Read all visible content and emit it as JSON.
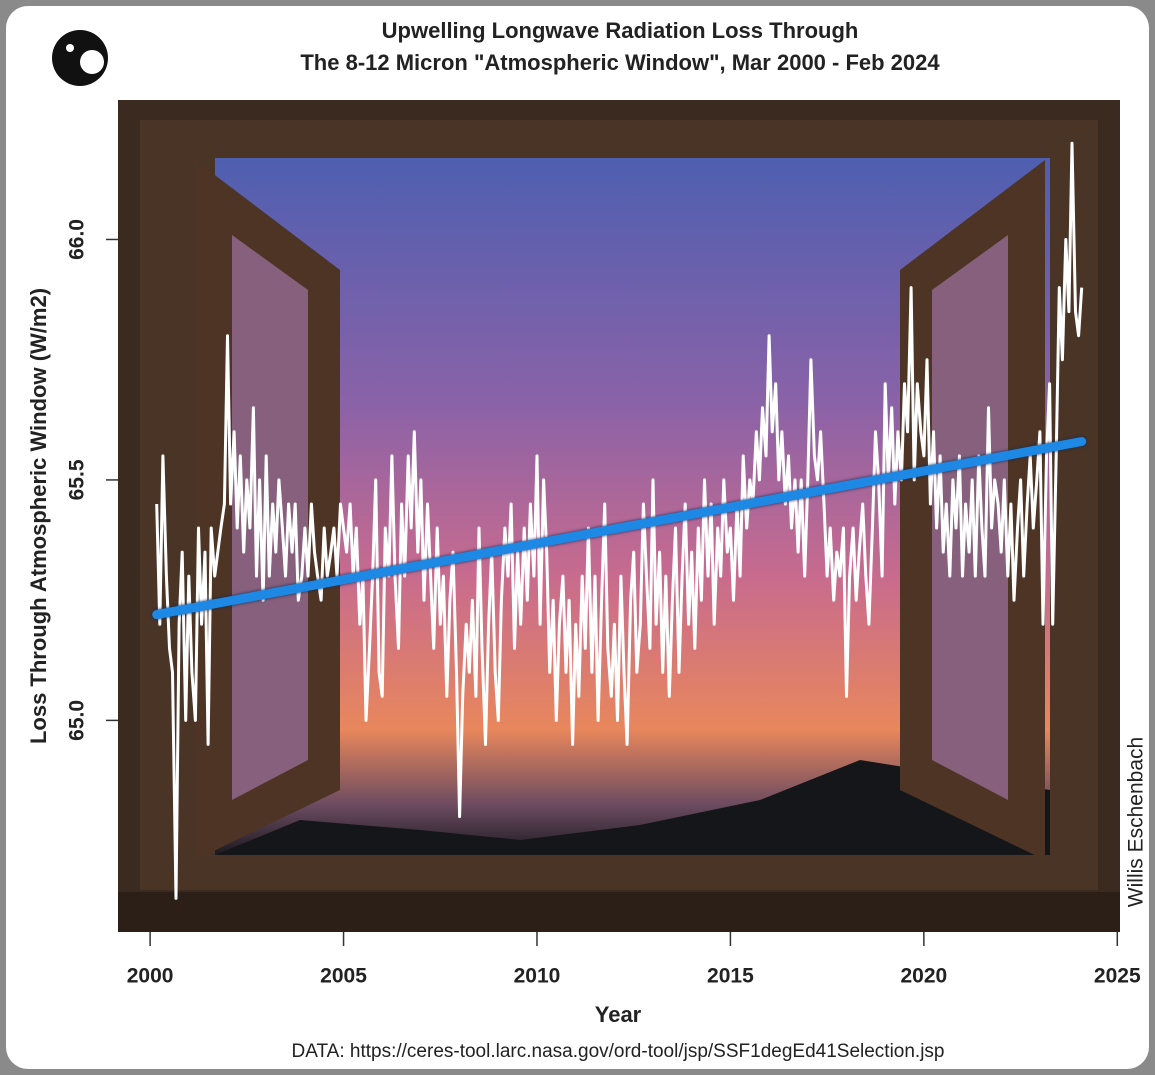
{
  "chart_data": {
    "type": "line",
    "title": "Upwelling Longwave Radiation Loss Through",
    "subtitle": "The 8-12 Micron \"Atmospheric Window\", Mar 2000 - Feb 2024",
    "x_label": "Year",
    "y_label": "Loss Through Atmospheric Window (W/m2)",
    "source": "DATA: https://ceres-tool.larc.nasa.gov/ord-tool/jsp/SSF1degEd41Selection.jsp",
    "credit": "Willis Eschenbach",
    "color": "#ffffff",
    "x": [
      2000.17,
      2000.25,
      2000.33,
      2000.42,
      2000.5,
      2000.58,
      2000.67,
      2000.75,
      2000.83,
      2000.92,
      2001,
      2001.08,
      2001.17,
      2001.25,
      2001.33,
      2001.42,
      2001.5,
      2001.58,
      2001.67,
      2001.75,
      2001.83,
      2001.92,
      2002,
      2002.08,
      2002.17,
      2002.25,
      2002.33,
      2002.42,
      2002.5,
      2002.58,
      2002.67,
      2002.75,
      2002.83,
      2002.92,
      2003,
      2003.08,
      2003.17,
      2003.25,
      2003.33,
      2003.42,
      2003.5,
      2003.58,
      2003.67,
      2003.75,
      2003.83,
      2003.92,
      2004,
      2004.08,
      2004.17,
      2004.25,
      2004.33,
      2004.42,
      2004.5,
      2004.58,
      2004.67,
      2004.75,
      2004.83,
      2004.92,
      2005,
      2005.08,
      2005.17,
      2005.25,
      2005.33,
      2005.42,
      2005.5,
      2005.58,
      2005.67,
      2005.75,
      2005.83,
      2005.92,
      2006,
      2006.08,
      2006.17,
      2006.25,
      2006.33,
      2006.42,
      2006.5,
      2006.58,
      2006.67,
      2006.75,
      2006.83,
      2006.92,
      2007,
      2007.08,
      2007.17,
      2007.25,
      2007.33,
      2007.42,
      2007.5,
      2007.58,
      2007.67,
      2007.75,
      2007.83,
      2007.92,
      2008,
      2008.08,
      2008.17,
      2008.25,
      2008.33,
      2008.42,
      2008.5,
      2008.58,
      2008.67,
      2008.75,
      2008.83,
      2008.92,
      2009,
      2009.08,
      2009.17,
      2009.25,
      2009.33,
      2009.42,
      2009.5,
      2009.58,
      2009.67,
      2009.75,
      2009.83,
      2009.92,
      2010,
      2010.08,
      2010.17,
      2010.25,
      2010.33,
      2010.42,
      2010.5,
      2010.58,
      2010.67,
      2010.75,
      2010.83,
      2010.92,
      2011,
      2011.08,
      2011.17,
      2011.25,
      2011.33,
      2011.42,
      2011.5,
      2011.58,
      2011.67,
      2011.75,
      2011.83,
      2011.92,
      2012,
      2012.08,
      2012.17,
      2012.25,
      2012.33,
      2012.42,
      2012.5,
      2012.58,
      2012.67,
      2012.75,
      2012.83,
      2012.92,
      2013,
      2013.08,
      2013.17,
      2013.25,
      2013.33,
      2013.42,
      2013.5,
      2013.58,
      2013.67,
      2013.75,
      2013.83,
      2013.92,
      2014,
      2014.08,
      2014.17,
      2014.25,
      2014.33,
      2014.42,
      2014.5,
      2014.58,
      2014.67,
      2014.75,
      2014.83,
      2014.92,
      2015,
      2015.08,
      2015.17,
      2015.25,
      2015.33,
      2015.42,
      2015.5,
      2015.58,
      2015.67,
      2015.75,
      2015.83,
      2015.92,
      2016,
      2016.08,
      2016.17,
      2016.25,
      2016.33,
      2016.42,
      2016.5,
      2016.58,
      2016.67,
      2016.75,
      2016.83,
      2016.92,
      2017,
      2017.08,
      2017.17,
      2017.25,
      2017.33,
      2017.42,
      2017.5,
      2017.58,
      2017.67,
      2017.75,
      2017.83,
      2017.92,
      2018,
      2018.08,
      2018.17,
      2018.25,
      2018.33,
      2018.42,
      2018.5,
      2018.58,
      2018.67,
      2018.75,
      2018.83,
      2018.92,
      2019,
      2019.08,
      2019.17,
      2019.25,
      2019.33,
      2019.42,
      2019.5,
      2019.58,
      2019.67,
      2019.75,
      2019.83,
      2019.92,
      2020,
      2020.08,
      2020.17,
      2020.25,
      2020.33,
      2020.42,
      2020.5,
      2020.58,
      2020.67,
      2020.75,
      2020.83,
      2020.92,
      2021,
      2021.08,
      2021.17,
      2021.25,
      2021.33,
      2021.42,
      2021.5,
      2021.58,
      2021.67,
      2021.75,
      2021.83,
      2021.92,
      2022,
      2022.08,
      2022.17,
      2022.25,
      2022.33,
      2022.42,
      2022.5,
      2022.58,
      2022.67,
      2022.75,
      2022.83,
      2022.92,
      2023,
      2023.08,
      2023.17,
      2023.25,
      2023.33,
      2023.42,
      2023.5,
      2023.58,
      2023.67,
      2023.75,
      2023.83,
      2023.92,
      2024,
      2024.08
    ],
    "values": [
      65.45,
      65.2,
      65.55,
      65.3,
      65.15,
      65.1,
      64.63,
      65.2,
      65.35,
      65.0,
      65.3,
      65.1,
      65.0,
      65.4,
      65.2,
      65.35,
      64.95,
      65.4,
      65.3,
      65.35,
      65.4,
      65.45,
      65.8,
      65.45,
      65.6,
      65.4,
      65.55,
      65.35,
      65.5,
      65.4,
      65.65,
      65.3,
      65.5,
      65.25,
      65.55,
      65.3,
      65.45,
      65.35,
      65.5,
      65.4,
      65.3,
      65.45,
      65.35,
      65.45,
      65.25,
      65.3,
      65.4,
      65.3,
      65.45,
      65.35,
      65.3,
      65.25,
      65.4,
      65.3,
      65.35,
      65.4,
      65.3,
      65.45,
      65.4,
      65.35,
      65.45,
      65.3,
      65.4,
      65.2,
      65.3,
      65.0,
      65.15,
      65.3,
      65.5,
      65.1,
      65.05,
      65.4,
      65.3,
      65.55,
      65.3,
      65.15,
      65.45,
      65.3,
      65.55,
      65.4,
      65.6,
      65.35,
      65.5,
      65.25,
      65.45,
      65.3,
      65.15,
      65.4,
      65.2,
      65.3,
      65.05,
      65.25,
      65.35,
      65.1,
      64.8,
      65.05,
      65.2,
      65.1,
      65.25,
      65.05,
      65.4,
      65.15,
      64.95,
      65.2,
      65.35,
      65.1,
      65.0,
      65.25,
      65.4,
      65.3,
      65.45,
      65.15,
      65.35,
      65.2,
      65.4,
      65.25,
      65.45,
      65.3,
      65.55,
      65.2,
      65.5,
      65.35,
      65.1,
      65.25,
      65.0,
      65.2,
      65.3,
      65.1,
      65.25,
      64.95,
      65.2,
      65.05,
      65.3,
      65.15,
      65.4,
      65.1,
      65.3,
      65.0,
      65.25,
      65.45,
      65.15,
      65.05,
      65.2,
      65.0,
      65.3,
      65.1,
      64.95,
      65.25,
      65.35,
      65.1,
      65.2,
      65.45,
      65.3,
      65.15,
      65.5,
      65.2,
      65.35,
      65.1,
      65.3,
      65.05,
      65.25,
      65.4,
      65.1,
      65.3,
      65.45,
      65.2,
      65.35,
      65.15,
      65.4,
      65.25,
      65.5,
      65.3,
      65.45,
      65.2,
      65.4,
      65.3,
      65.5,
      65.35,
      65.4,
      65.25,
      65.45,
      65.3,
      65.55,
      65.4,
      65.5,
      65.45,
      65.6,
      65.5,
      65.65,
      65.55,
      65.8,
      65.6,
      65.7,
      65.5,
      65.6,
      65.45,
      65.55,
      65.4,
      65.5,
      65.35,
      65.5,
      65.3,
      65.5,
      65.75,
      65.55,
      65.5,
      65.6,
      65.45,
      65.3,
      65.4,
      65.25,
      65.35,
      65.3,
      65.4,
      65.05,
      65.3,
      65.4,
      65.25,
      65.35,
      65.45,
      65.3,
      65.2,
      65.4,
      65.6,
      65.5,
      65.3,
      65.7,
      65.5,
      65.65,
      65.45,
      65.6,
      65.5,
      65.7,
      65.6,
      65.9,
      65.5,
      65.7,
      65.6,
      65.55,
      65.75,
      65.45,
      65.6,
      65.4,
      65.55,
      65.35,
      65.45,
      65.3,
      65.5,
      65.4,
      65.55,
      65.3,
      65.45,
      65.35,
      65.5,
      65.3,
      65.55,
      65.4,
      65.3,
      65.65,
      65.4,
      65.5,
      65.45,
      65.35,
      65.5,
      65.3,
      65.45,
      65.25,
      65.4,
      65.5,
      65.3,
      65.45,
      65.55,
      65.4,
      65.5,
      65.6,
      65.2,
      65.55,
      65.7,
      65.2,
      65.55,
      65.9,
      65.75,
      66.0,
      65.85,
      66.2,
      65.85,
      65.8,
      65.9
    ],
    "trend": {
      "x": [
        2000.17,
        2024.08
      ],
      "values": [
        65.22,
        65.58
      ],
      "color": "#1e88e5"
    },
    "xlim": [
      1999.17,
      2025.07
    ],
    "ylim": [
      64.56,
      66.29
    ],
    "xticks": [
      2000,
      2005,
      2010,
      2015,
      2020,
      2025
    ],
    "yticks": [
      {
        "value": 65,
        "label": "65.0"
      },
      65.5,
      {
        "value": 66,
        "label": "66.0"
      }
    ]
  }
}
